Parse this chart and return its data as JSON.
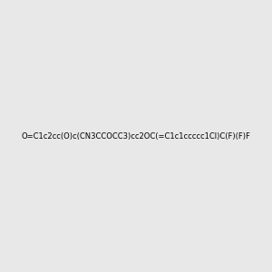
{
  "smiles": "O=C1c2cc(O)c(CN3CCOCC3)cc2OC(=C1c1ccccc1Cl)C(F)(F)F",
  "title": "",
  "bg_color": "#e8e8e8",
  "img_size": [
    300,
    300
  ],
  "atom_colors": {
    "O_carbonyl": "#ff0000",
    "O_ether": "#ff0000",
    "O_hydroxy": "#ff0000",
    "O_morpholine": "#ff0000",
    "N": "#0000ff",
    "F": "#ff00ff",
    "Cl": "#00cc00",
    "H_label": "#008080",
    "C": "#000000"
  }
}
